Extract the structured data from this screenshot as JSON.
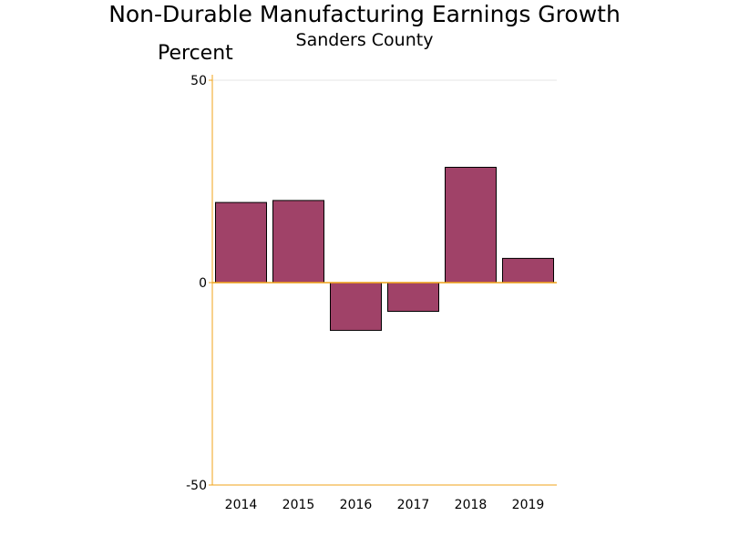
{
  "chart_data": {
    "type": "bar",
    "title": "Non-Durable Manufacturing Earnings Growth",
    "subtitle": "Sanders County",
    "ylabel": "Percent",
    "xlabel": "",
    "categories": [
      "2014",
      "2015",
      "2016",
      "2017",
      "2018",
      "2019"
    ],
    "values": [
      19.8,
      20.3,
      -11.8,
      -7.1,
      28.5,
      6.0
    ],
    "ylim": [
      -50,
      50
    ],
    "yticks": [
      "50",
      "0",
      "-50"
    ],
    "grid": true,
    "legend": "none",
    "colors": {
      "bar_fill": "#a04268",
      "bar_stroke": "#000000",
      "axis": "#f0a318",
      "zero_line": "#f0a318",
      "grid": "#e6e6e6"
    }
  }
}
